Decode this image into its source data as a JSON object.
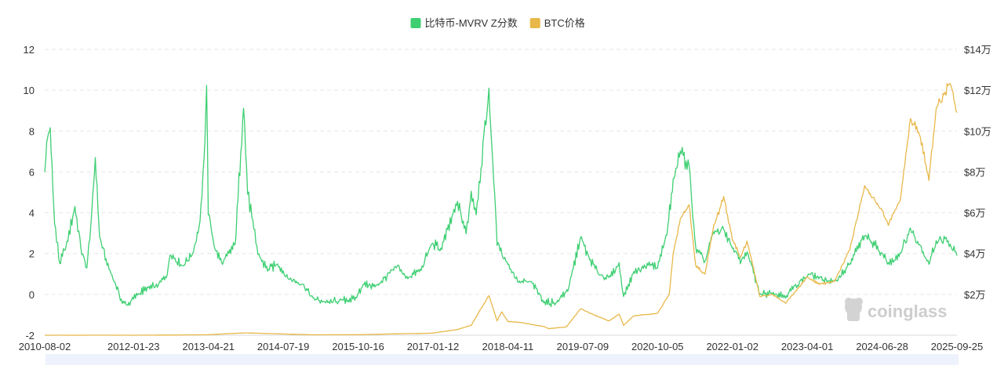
{
  "chart_data": {
    "type": "line",
    "series": [
      {
        "name": "比特币-MVRV Z分数",
        "axis": "left",
        "color": "#3ecf72",
        "points": [
          [
            "2010-08-02",
            6.0
          ],
          [
            "2010-08-20",
            7.8
          ],
          [
            "2010-09-05",
            8.0
          ],
          [
            "2010-10-01",
            3.5
          ],
          [
            "2010-11-01",
            1.5
          ],
          [
            "2010-12-15",
            2.5
          ],
          [
            "2011-02-01",
            4.3
          ],
          [
            "2011-03-15",
            2.0
          ],
          [
            "2011-04-15",
            1.3
          ],
          [
            "2011-05-15",
            4.0
          ],
          [
            "2011-06-05",
            6.7
          ],
          [
            "2011-07-01",
            2.8
          ],
          [
            "2011-08-15",
            1.5
          ],
          [
            "2011-10-01",
            0.6
          ],
          [
            "2011-11-15",
            -0.4
          ],
          [
            "2011-12-20",
            -0.5
          ],
          [
            "2012-02-15",
            0.0
          ],
          [
            "2012-04-15",
            0.3
          ],
          [
            "2012-06-15",
            0.4
          ],
          [
            "2012-08-15",
            1.0
          ],
          [
            "2012-09-01",
            2.0
          ],
          [
            "2012-11-15",
            1.4
          ],
          [
            "2013-01-15",
            2.0
          ],
          [
            "2013-03-01",
            3.5
          ],
          [
            "2013-03-25",
            6.5
          ],
          [
            "2013-04-10",
            10.3
          ],
          [
            "2013-04-20",
            4.0
          ],
          [
            "2013-06-01",
            2.2
          ],
          [
            "2013-07-15",
            1.5
          ],
          [
            "2013-10-01",
            2.5
          ],
          [
            "2013-11-20",
            9.3
          ],
          [
            "2013-12-15",
            5.0
          ],
          [
            "2014-01-15",
            3.5
          ],
          [
            "2014-02-15",
            2.0
          ],
          [
            "2014-04-15",
            1.2
          ],
          [
            "2014-06-15",
            1.5
          ],
          [
            "2014-08-15",
            0.8
          ],
          [
            "2014-11-15",
            0.5
          ],
          [
            "2015-01-15",
            -0.2
          ],
          [
            "2015-04-15",
            -0.4
          ],
          [
            "2015-07-01",
            -0.3
          ],
          [
            "2015-10-01",
            -0.2
          ],
          [
            "2015-11-15",
            0.5
          ],
          [
            "2016-02-01",
            0.4
          ],
          [
            "2016-06-15",
            1.4
          ],
          [
            "2016-08-01",
            0.8
          ],
          [
            "2016-11-01",
            1.2
          ],
          [
            "2017-01-05",
            2.5
          ],
          [
            "2017-03-01",
            2.2
          ],
          [
            "2017-06-10",
            4.5
          ],
          [
            "2017-08-01",
            3.0
          ],
          [
            "2017-09-01",
            5.0
          ],
          [
            "2017-10-01",
            4.0
          ],
          [
            "2017-12-17",
            9.9
          ],
          [
            "2018-01-10",
            6.5
          ],
          [
            "2018-02-05",
            2.5
          ],
          [
            "2018-04-11",
            1.5
          ],
          [
            "2018-06-15",
            0.6
          ],
          [
            "2018-09-01",
            0.6
          ],
          [
            "2018-11-20",
            -0.4
          ],
          [
            "2019-02-01",
            -0.4
          ],
          [
            "2019-04-15",
            0.3
          ],
          [
            "2019-06-26",
            2.8
          ],
          [
            "2019-08-15",
            1.8
          ],
          [
            "2019-10-15",
            1.0
          ],
          [
            "2019-12-15",
            0.8
          ],
          [
            "2020-02-15",
            1.5
          ],
          [
            "2020-03-13",
            -0.1
          ],
          [
            "2020-05-15",
            1.1
          ],
          [
            "2020-08-15",
            1.5
          ],
          [
            "2020-10-05",
            1.3
          ],
          [
            "2020-12-01",
            3.0
          ],
          [
            "2021-01-08",
            5.5
          ],
          [
            "2021-02-20",
            7.0
          ],
          [
            "2021-04-14",
            6.3
          ],
          [
            "2021-05-25",
            2.2
          ],
          [
            "2021-07-20",
            1.6
          ],
          [
            "2021-09-07",
            3.0
          ],
          [
            "2021-11-10",
            3.2
          ],
          [
            "2022-01-02",
            2.3
          ],
          [
            "2022-02-20",
            1.6
          ],
          [
            "2022-04-01",
            2.1
          ],
          [
            "2022-06-18",
            0.0
          ],
          [
            "2022-09-01",
            0.1
          ],
          [
            "2022-11-21",
            -0.1
          ],
          [
            "2023-01-15",
            0.4
          ],
          [
            "2023-03-15",
            0.8
          ],
          [
            "2023-04-15",
            1.0
          ],
          [
            "2023-06-15",
            0.8
          ],
          [
            "2023-09-15",
            0.6
          ],
          [
            "2023-12-15",
            1.5
          ],
          [
            "2024-03-14",
            2.9
          ],
          [
            "2024-06-28",
            2.0
          ],
          [
            "2024-08-05",
            1.5
          ],
          [
            "2024-10-15",
            2.0
          ],
          [
            "2024-12-17",
            3.2
          ],
          [
            "2025-02-15",
            2.4
          ],
          [
            "2025-04-08",
            1.5
          ],
          [
            "2025-05-22",
            2.6
          ],
          [
            "2025-07-15",
            2.7
          ],
          [
            "2025-08-15",
            2.4
          ],
          [
            "2025-09-25",
            1.9
          ]
        ]
      },
      {
        "name": "BTC价格",
        "axis": "right",
        "color": "#e8b84a",
        "points": [
          [
            "2010-08-02",
            0
          ],
          [
            "2011-06-05",
            30
          ],
          [
            "2012-01-23",
            6
          ],
          [
            "2013-04-10",
            230
          ],
          [
            "2013-11-30",
            1150
          ],
          [
            "2014-07-19",
            620
          ],
          [
            "2015-01-15",
            200
          ],
          [
            "2015-10-16",
            270
          ],
          [
            "2016-06-15",
            700
          ],
          [
            "2017-01-05",
            1000
          ],
          [
            "2017-06-10",
            2800
          ],
          [
            "2017-09-01",
            4900
          ],
          [
            "2017-12-17",
            19500
          ],
          [
            "2018-02-05",
            7000
          ],
          [
            "2018-03-05",
            11500
          ],
          [
            "2018-04-11",
            6800
          ],
          [
            "2018-06-30",
            6200
          ],
          [
            "2018-11-20",
            4200
          ],
          [
            "2018-12-15",
            3200
          ],
          [
            "2019-04-01",
            4100
          ],
          [
            "2019-06-26",
            13000
          ],
          [
            "2019-09-15",
            10000
          ],
          [
            "2019-12-15",
            7000
          ],
          [
            "2020-02-15",
            10300
          ],
          [
            "2020-03-13",
            4900
          ],
          [
            "2020-05-15",
            9500
          ],
          [
            "2020-10-05",
            10700
          ],
          [
            "2020-12-15",
            20000
          ],
          [
            "2021-01-08",
            40000
          ],
          [
            "2021-02-20",
            57000
          ],
          [
            "2021-04-14",
            64000
          ],
          [
            "2021-05-25",
            34000
          ],
          [
            "2021-07-20",
            30000
          ],
          [
            "2021-09-07",
            52000
          ],
          [
            "2021-11-10",
            68000
          ],
          [
            "2022-01-02",
            47000
          ],
          [
            "2022-02-20",
            38000
          ],
          [
            "2022-04-01",
            46000
          ],
          [
            "2022-06-18",
            19000
          ],
          [
            "2022-09-01",
            20000
          ],
          [
            "2022-11-21",
            15800
          ],
          [
            "2023-01-15",
            21000
          ],
          [
            "2023-04-01",
            28500
          ],
          [
            "2023-06-15",
            25000
          ],
          [
            "2023-09-15",
            26500
          ],
          [
            "2023-12-15",
            42000
          ],
          [
            "2024-03-14",
            73000
          ],
          [
            "2024-06-28",
            61000
          ],
          [
            "2024-08-05",
            54000
          ],
          [
            "2024-10-15",
            66000
          ],
          [
            "2024-12-17",
            106000
          ],
          [
            "2025-02-15",
            97000
          ],
          [
            "2025-04-08",
            76000
          ],
          [
            "2025-05-22",
            111000
          ],
          [
            "2025-07-15",
            118000
          ],
          [
            "2025-08-14",
            124000
          ],
          [
            "2025-09-25",
            109000
          ]
        ]
      }
    ],
    "x_tick_labels": [
      "2010-08-02",
      "2012-01-23",
      "2013-04-21",
      "2014-07-19",
      "2015-10-16",
      "2017-01-12",
      "2018-04-11",
      "2019-07-09",
      "2020-10-05",
      "2022-01-02",
      "2023-04-01",
      "2024-06-28",
      "2025-09-25"
    ],
    "y_left_ticks": [
      -2,
      0,
      2,
      4,
      6,
      8,
      10,
      12
    ],
    "y_left_range": [
      -2,
      12
    ],
    "y_right_ticks": [
      20000,
      40000,
      60000,
      80000,
      100000,
      120000,
      140000
    ],
    "y_right_tick_labels": [
      "$2万",
      "$4万",
      "$6万",
      "$8万",
      "$10万",
      "$12万",
      "$14万"
    ],
    "y_right_range": [
      0,
      140000
    ],
    "grid": "horizontal dashed",
    "legend_placement": "top-center",
    "watermark": "coinglass"
  }
}
